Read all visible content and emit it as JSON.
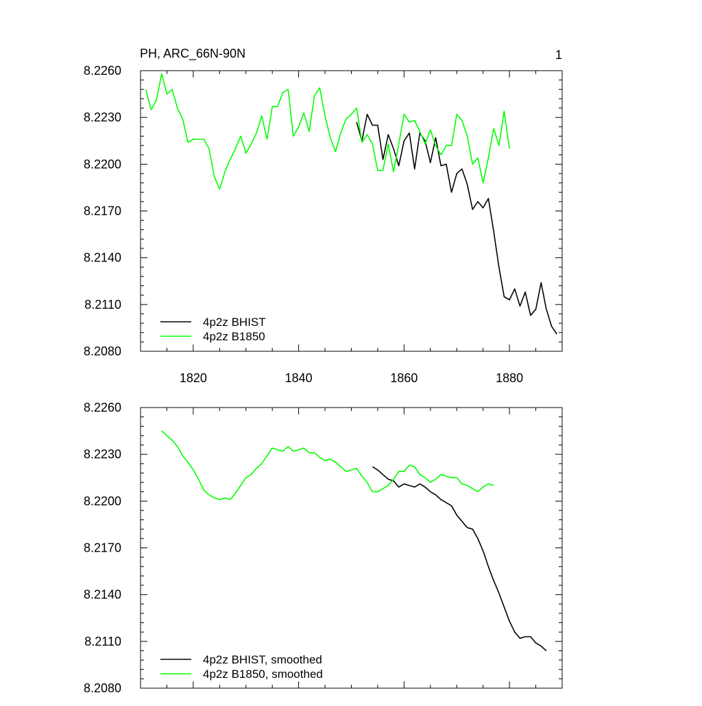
{
  "chart_data": [
    {
      "type": "line",
      "title": "PH, ARC_66N-90N",
      "panel_label": "1",
      "xlim": [
        1810,
        1890
      ],
      "ylim": [
        8.208,
        8.226
      ],
      "x_ticks": [
        1820,
        1840,
        1860,
        1880
      ],
      "x_tick_labels": [
        "1820",
        "1840",
        "1860",
        "1880"
      ],
      "y_ticks": [
        8.208,
        8.211,
        8.214,
        8.217,
        8.22,
        8.223,
        8.226
      ],
      "y_tick_labels": [
        "8.2080",
        "8.2110",
        "8.2140",
        "8.2170",
        "8.2200",
        "8.2230",
        "8.2260"
      ],
      "legend_position": "bottom-left",
      "series": [
        {
          "name": "4p2z BHIST",
          "color": "#000000",
          "x": [
            1851,
            1852,
            1853,
            1854,
            1855,
            1856,
            1857,
            1858,
            1859,
            1860,
            1861,
            1862,
            1863,
            1864,
            1865,
            1866,
            1867,
            1868,
            1869,
            1870,
            1871,
            1872,
            1873,
            1874,
            1875,
            1876,
            1877,
            1878,
            1879,
            1880,
            1881,
            1882,
            1883,
            1884,
            1885,
            1886,
            1887,
            1888,
            1889
          ],
          "y": [
            8.2227,
            8.2215,
            8.2232,
            8.2225,
            8.2225,
            8.2203,
            8.2219,
            8.221,
            8.2199,
            8.2215,
            8.222,
            8.2197,
            8.222,
            8.2215,
            8.2201,
            8.2217,
            8.2199,
            8.22,
            8.2182,
            8.2194,
            8.2197,
            8.2187,
            8.2171,
            8.2176,
            8.2172,
            8.2178,
            8.2157,
            8.2134,
            8.2115,
            8.2113,
            8.212,
            8.2109,
            8.2118,
            8.2103,
            8.2107,
            8.2124,
            8.2107,
            8.2096,
            8.2091
          ]
        },
        {
          "name": "4p2z B1850",
          "color": "#00ff00",
          "x": [
            1811,
            1812,
            1813,
            1814,
            1815,
            1816,
            1817,
            1818,
            1819,
            1820,
            1821,
            1822,
            1823,
            1824,
            1825,
            1826,
            1827,
            1828,
            1829,
            1830,
            1831,
            1832,
            1833,
            1834,
            1835,
            1836,
            1837,
            1838,
            1839,
            1840,
            1841,
            1842,
            1843,
            1844,
            1845,
            1846,
            1847,
            1848,
            1849,
            1850,
            1851,
            1852,
            1853,
            1854,
            1855,
            1856,
            1857,
            1858,
            1859,
            1860,
            1861,
            1862,
            1863,
            1864,
            1865,
            1866,
            1867,
            1868,
            1869,
            1870,
            1871,
            1872,
            1873,
            1874,
            1875,
            1876,
            1877,
            1878,
            1879,
            1880
          ],
          "y": [
            8.2248,
            8.2235,
            8.2241,
            8.2258,
            8.2245,
            8.2248,
            8.2236,
            8.2229,
            8.2214,
            8.2216,
            8.2216,
            8.2216,
            8.221,
            8.2192,
            8.2184,
            8.2195,
            8.2203,
            8.221,
            8.2218,
            8.2207,
            8.2213,
            8.222,
            8.2231,
            8.2216,
            8.2237,
            8.2237,
            8.2246,
            8.2248,
            8.2218,
            8.2224,
            8.2233,
            8.2221,
            8.2244,
            8.2249,
            8.2231,
            8.2217,
            8.2208,
            8.222,
            8.2229,
            8.2232,
            8.2236,
            8.2214,
            8.2219,
            8.2213,
            8.2196,
            8.2196,
            8.2213,
            8.2195,
            8.2213,
            8.2232,
            8.2227,
            8.2228,
            8.2221,
            8.2213,
            8.2222,
            8.2212,
            8.2206,
            8.2212,
            8.2212,
            8.2232,
            8.2228,
            8.2218,
            8.22,
            8.2204,
            8.2188,
            8.2204,
            8.2223,
            8.2212,
            8.2234,
            8.221
          ]
        }
      ]
    },
    {
      "type": "line",
      "title": "",
      "xlim": [
        1810,
        1890
      ],
      "ylim": [
        8.208,
        8.226
      ],
      "x_ticks": [
        1820,
        1840,
        1860,
        1880
      ],
      "x_tick_labels": [],
      "y_ticks": [
        8.208,
        8.211,
        8.214,
        8.217,
        8.22,
        8.223,
        8.226
      ],
      "y_tick_labels": [
        "8.2080",
        "8.2110",
        "8.2140",
        "8.2170",
        "8.2200",
        "8.2230",
        "8.2260"
      ],
      "legend_position": "bottom-left",
      "series": [
        {
          "name": "4p2z BHIST, smoothed",
          "color": "#000000",
          "x": [
            1854,
            1855,
            1856,
            1857,
            1858,
            1859,
            1860,
            1861,
            1862,
            1863,
            1864,
            1865,
            1866,
            1867,
            1868,
            1869,
            1870,
            1871,
            1872,
            1873,
            1874,
            1875,
            1876,
            1877,
            1878,
            1879,
            1880,
            1881,
            1882,
            1883,
            1884,
            1885,
            1886,
            1887
          ],
          "y": [
            8.2222,
            8.222,
            8.2217,
            8.2214,
            8.2213,
            8.2209,
            8.2211,
            8.221,
            8.2209,
            8.2211,
            8.2209,
            8.2206,
            8.2204,
            8.2201,
            8.2199,
            8.2197,
            8.2191,
            8.2187,
            8.2183,
            8.2182,
            8.2176,
            8.2168,
            8.2158,
            8.2149,
            8.2141,
            8.2132,
            8.2123,
            8.2116,
            8.2112,
            8.2113,
            8.2113,
            8.2109,
            8.2107,
            8.2104
          ]
        },
        {
          "name": "4p2z B1850, smoothed",
          "color": "#00ff00",
          "x": [
            1814,
            1815,
            1816,
            1817,
            1818,
            1819,
            1820,
            1821,
            1822,
            1823,
            1824,
            1825,
            1826,
            1827,
            1828,
            1829,
            1830,
            1831,
            1832,
            1833,
            1834,
            1835,
            1836,
            1837,
            1838,
            1839,
            1840,
            1841,
            1842,
            1843,
            1844,
            1845,
            1846,
            1847,
            1848,
            1849,
            1850,
            1851,
            1852,
            1853,
            1854,
            1855,
            1856,
            1857,
            1858,
            1859,
            1860,
            1861,
            1862,
            1863,
            1864,
            1865,
            1866,
            1867,
            1868,
            1869,
            1870,
            1871,
            1872,
            1873,
            1874,
            1875,
            1876,
            1877
          ],
          "y": [
            8.2245,
            8.2242,
            8.2239,
            8.2235,
            8.2229,
            8.2225,
            8.222,
            8.2214,
            8.2207,
            8.2204,
            8.2202,
            8.2201,
            8.2202,
            8.2201,
            8.2205,
            8.221,
            8.2215,
            8.2217,
            8.2221,
            8.2224,
            8.2229,
            8.2234,
            8.2233,
            8.2232,
            8.2235,
            8.2232,
            8.2233,
            8.2234,
            8.2231,
            8.2231,
            8.2228,
            8.2226,
            8.2227,
            8.2225,
            8.2222,
            8.2219,
            8.222,
            8.2221,
            8.2216,
            8.2212,
            8.2206,
            8.2206,
            8.2208,
            8.221,
            8.2214,
            8.2219,
            8.2219,
            8.2223,
            8.2222,
            8.2217,
            8.2215,
            8.2212,
            8.2214,
            8.2217,
            8.2216,
            8.2215,
            8.2215,
            8.2211,
            8.221,
            8.2208,
            8.2206,
            8.2209,
            8.2211,
            8.221
          ]
        }
      ]
    }
  ]
}
